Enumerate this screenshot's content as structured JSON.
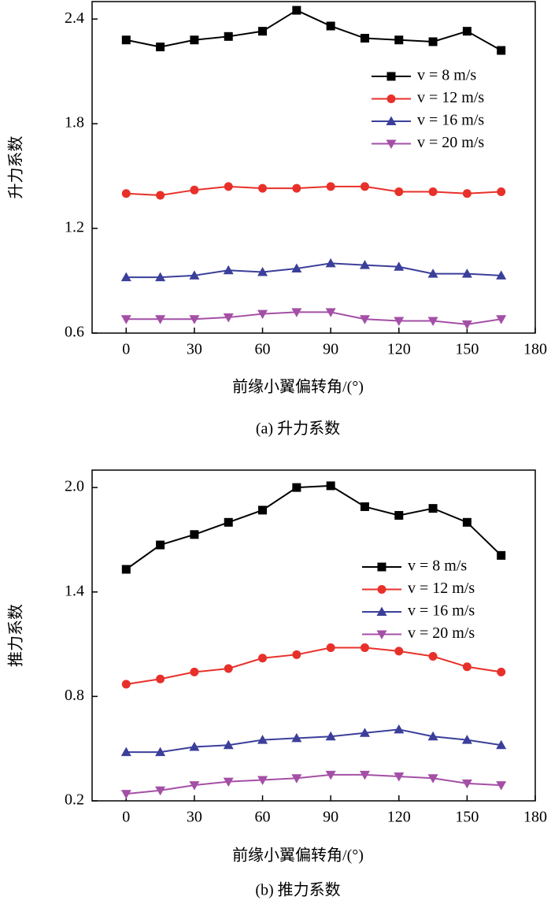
{
  "chart_data": [
    {
      "type": "line",
      "caption": "(a) 升力系数",
      "xlabel": "前缘小翼偏转角/(°)",
      "ylabel": "升力系数",
      "x": [
        0,
        15,
        30,
        45,
        60,
        75,
        90,
        105,
        120,
        135,
        150,
        165
      ],
      "xlim": [
        -15,
        180
      ],
      "xticks": [
        0,
        30,
        60,
        90,
        120,
        150,
        180
      ],
      "ylim": [
        0.6,
        2.5
      ],
      "yticks": [
        {
          "value": 0.6,
          "label": "0.6"
        },
        {
          "value": 1.2,
          "label": "1.2"
        },
        {
          "value": 1.8,
          "label": "1.8"
        },
        {
          "value": 2.4,
          "label": "2.4"
        }
      ],
      "series": [
        {
          "name": "v = 8 m/s",
          "color": "#000000",
          "marker": "square",
          "values": [
            2.28,
            2.24,
            2.28,
            2.3,
            2.33,
            2.45,
            2.36,
            2.29,
            2.28,
            2.27,
            2.33,
            2.22
          ]
        },
        {
          "name": "v = 12 m/s",
          "color": "#e8302a",
          "marker": "circle",
          "values": [
            1.4,
            1.39,
            1.42,
            1.44,
            1.43,
            1.43,
            1.44,
            1.44,
            1.41,
            1.41,
            1.4,
            1.41
          ]
        },
        {
          "name": "v = 16 m/s",
          "color": "#3b3f9a",
          "marker": "triangle-up",
          "values": [
            0.92,
            0.92,
            0.93,
            0.96,
            0.95,
            0.97,
            1.0,
            0.99,
            0.98,
            0.94,
            0.94,
            0.93
          ]
        },
        {
          "name": "v = 20 m/s",
          "color": "#a44fa6",
          "marker": "triangle-down",
          "values": [
            0.68,
            0.68,
            0.68,
            0.69,
            0.71,
            0.72,
            0.72,
            0.68,
            0.67,
            0.67,
            0.65,
            0.68
          ]
        }
      ]
    },
    {
      "type": "line",
      "caption": "(b) 推力系数",
      "xlabel": "前缘小翼偏转角/(°)",
      "ylabel": "推力系数",
      "x": [
        0,
        15,
        30,
        45,
        60,
        75,
        90,
        105,
        120,
        135,
        150,
        165
      ],
      "xlim": [
        -15,
        180
      ],
      "xticks": [
        0,
        30,
        60,
        90,
        120,
        150,
        180
      ],
      "ylim": [
        0.2,
        2.1
      ],
      "yticks": [
        0.2,
        0.8,
        1.4,
        {
          "value": 2.0,
          "label": "2.0"
        }
      ],
      "series": [
        {
          "name": "v = 8 m/s",
          "color": "#000000",
          "marker": "square",
          "values": [
            1.53,
            1.67,
            1.73,
            1.8,
            1.87,
            2.0,
            2.01,
            1.89,
            1.84,
            1.88,
            1.8,
            1.61
          ]
        },
        {
          "name": "v = 12 m/s",
          "color": "#e8302a",
          "marker": "circle",
          "values": [
            0.87,
            0.9,
            0.94,
            0.96,
            1.02,
            1.04,
            1.08,
            1.08,
            1.06,
            1.03,
            0.97,
            0.94
          ]
        },
        {
          "name": "v = 16 m/s",
          "color": "#3b3f9a",
          "marker": "triangle-up",
          "values": [
            0.48,
            0.48,
            0.51,
            0.52,
            0.55,
            0.56,
            0.57,
            0.59,
            0.61,
            0.57,
            0.55,
            0.52
          ]
        },
        {
          "name": "v = 20 m/s",
          "color": "#a44fa6",
          "marker": "triangle-down",
          "values": [
            0.24,
            0.26,
            0.29,
            0.31,
            0.32,
            0.33,
            0.35,
            0.35,
            0.34,
            0.33,
            0.3,
            0.29
          ]
        }
      ]
    }
  ]
}
